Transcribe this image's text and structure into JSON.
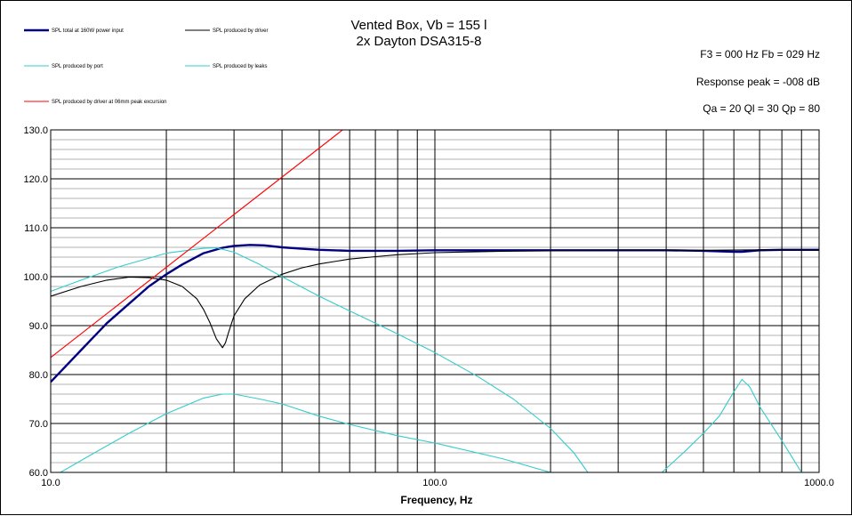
{
  "chart_data": {
    "type": "line",
    "title": "Vented Box, Vb = 155 l",
    "subtitle": "2x Dayton DSA315-8",
    "xlabel": "Frequency, Hz",
    "ylabel": "",
    "x_scale": "log",
    "xlim": [
      10,
      1000
    ],
    "ylim": [
      60,
      130
    ],
    "x_ticks": [
      10,
      100,
      1000
    ],
    "x_tick_labels": [
      "10.0",
      "100.0",
      "1000.0"
    ],
    "y_ticks": [
      60,
      70,
      80,
      90,
      100,
      110,
      120,
      130
    ],
    "y_tick_labels": [
      "60.0",
      "70.0",
      "80.0",
      "90.0",
      "100.0",
      "110.0",
      "120.0",
      "130.0"
    ],
    "grid": true,
    "legend_position": "top-left",
    "annotations": [
      "F3 = 000  Hz  Fb = 029  Hz",
      "Response peak = -008  dB",
      "Qa = 20  Ql = 30  Qp = 80"
    ],
    "series": [
      {
        "name": "SPL total at 160W power input",
        "color": "#000080",
        "x": [
          10,
          12,
          14,
          16,
          18,
          20,
          22,
          25,
          28,
          30,
          33,
          36,
          40,
          45,
          50,
          60,
          70,
          80,
          100,
          150,
          200,
          300,
          400,
          500,
          600,
          630,
          700,
          800,
          1000
        ],
        "y": [
          78.5,
          85,
          90.5,
          94.5,
          98,
          100.5,
          102.5,
          104.8,
          105.9,
          106.3,
          106.5,
          106.4,
          106,
          105.7,
          105.5,
          105.3,
          105.3,
          105.3,
          105.4,
          105.4,
          105.4,
          105.4,
          105.4,
          105.3,
          105.1,
          105.1,
          105.4,
          105.5,
          105.5
        ]
      },
      {
        "name": "SPL produced by driver",
        "color": "#000000",
        "x": [
          10,
          12,
          14,
          16,
          18,
          20,
          22,
          24,
          25,
          26,
          27,
          28,
          28.5,
          29,
          30,
          32,
          35,
          40,
          45,
          50,
          60,
          70,
          80,
          100,
          150,
          200,
          300,
          500,
          700,
          1000
        ],
        "y": [
          96,
          98,
          99.3,
          99.9,
          99.8,
          99.3,
          98,
          95.5,
          93.3,
          90.5,
          87.3,
          85.5,
          86.5,
          88.5,
          92,
          95.5,
          98.3,
          100.5,
          101.8,
          102.6,
          103.6,
          104.1,
          104.5,
          104.9,
          105.2,
          105.3,
          105.4,
          105.4,
          105.5,
          105.5
        ]
      },
      {
        "name": "SPL produced by port",
        "color": "#33CCCC",
        "x": [
          10.6,
          13,
          16,
          20,
          25,
          28,
          30,
          35,
          40,
          50,
          60,
          80,
          100,
          150,
          200
        ],
        "y": [
          60,
          64,
          68,
          72,
          75.2,
          76,
          76,
          75,
          74,
          71.5,
          69.8,
          67.5,
          66,
          62.8,
          60
        ]
      },
      {
        "name": "SPL produced by leaks",
        "color": "#33CCCC",
        "x": [
          10,
          12,
          15,
          20,
          25,
          27,
          30,
          35,
          40,
          50,
          60,
          70,
          80,
          100,
          130,
          160,
          200,
          230,
          250
        ],
        "y": [
          97,
          99.3,
          102,
          104.8,
          105.8,
          105.9,
          105,
          102.5,
          100,
          96,
          93,
          90.5,
          88.3,
          84.5,
          79.5,
          75,
          69,
          64,
          60
        ]
      },
      {
        "name": "SPL produced by leaks",
        "color": "#33CCCC",
        "x": [
          390,
          450,
          500,
          550,
          600,
          630,
          660,
          700,
          800,
          900
        ],
        "y": [
          60,
          64.5,
          68,
          71.5,
          76.5,
          79,
          77.5,
          73.5,
          66.5,
          60
        ]
      },
      {
        "name": "SPL produced by driver at 06mm peak excursion",
        "color": "#FF0000",
        "x": [
          10,
          57.5
        ],
        "y": [
          83.5,
          130
        ]
      }
    ]
  },
  "legend": [
    {
      "label": "SPL total at 160W power input",
      "color": "#000080",
      "bold": true
    },
    {
      "label": "SPL produced by driver",
      "color": "#000000",
      "bold": false
    },
    {
      "label": "SPL produced by port",
      "color": "#33CCCC",
      "bold": false
    },
    {
      "label": "SPL produced by leaks",
      "color": "#33CCCC",
      "bold": false
    },
    {
      "label": "SPL produced by driver at 06mm peak excursion",
      "color": "#FF0000",
      "bold": false
    }
  ]
}
